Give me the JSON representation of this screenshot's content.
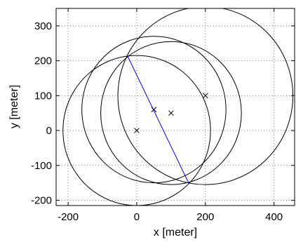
{
  "chart_data": {
    "type": "scatter",
    "title": "",
    "xlabel": "x [meter]",
    "ylabel": "y [meter]",
    "xlim": [
      -235,
      460
    ],
    "ylim": [
      -215,
      350
    ],
    "xticks": [
      -200,
      0,
      200,
      400
    ],
    "yticks": [
      -200,
      -100,
      0,
      100,
      200,
      300
    ],
    "grid": true,
    "grid_style": "dotted",
    "points": [
      {
        "x": 0,
        "y": 0
      },
      {
        "x": 50,
        "y": 60
      },
      {
        "x": 100,
        "y": 50
      },
      {
        "x": 200,
        "y": 100
      }
    ],
    "circles": [
      {
        "cx": 0,
        "cy": 0,
        "r": 215
      },
      {
        "cx": 50,
        "cy": 60,
        "r": 210
      },
      {
        "cx": 100,
        "cy": 50,
        "r": 205
      },
      {
        "cx": 200,
        "cy": 100,
        "r": 255
      }
    ],
    "line": {
      "x": [
        -27,
        152
      ],
      "y": [
        214,
        -152
      ]
    },
    "colors": {
      "line": "#0000ff",
      "circles": "#000000",
      "markers": "#000000",
      "grid": "#808080"
    }
  }
}
